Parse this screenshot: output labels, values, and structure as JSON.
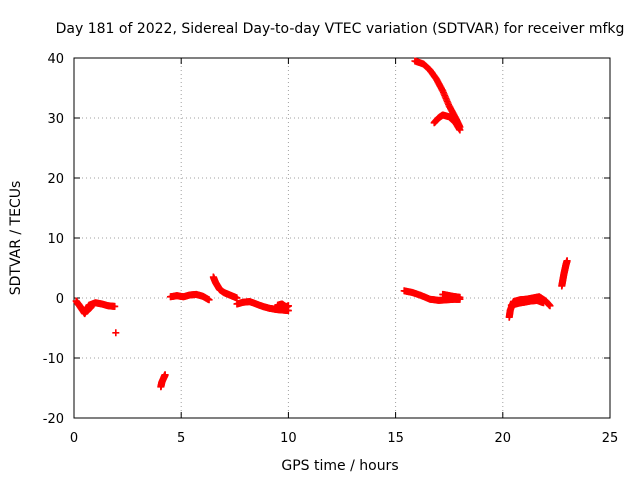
{
  "chart_data": {
    "type": "scatter",
    "title": "Day 181 of 2022, Sidereal Day-to-day VTEC variation (SDTVAR) for receiver mfkg",
    "xlabel": "GPS time / hours",
    "ylabel": "SDTVAR / TECUs",
    "xlim": [
      0,
      25
    ],
    "ylim": [
      -20,
      40
    ],
    "xticks": [
      0,
      5,
      10,
      15,
      20,
      25
    ],
    "yticks": [
      -20,
      -10,
      0,
      10,
      20,
      30,
      40
    ],
    "grid": true,
    "marker": "+",
    "color": "#ff0000",
    "segments": [
      {
        "name": "arc-0-2h",
        "x": [
          0.1,
          0.3,
          0.5,
          0.7,
          1.0,
          1.3,
          1.6,
          1.9
        ],
        "y": [
          -0.5,
          -1.5,
          -2.6,
          -1.2,
          -0.8,
          -1.0,
          -1.3,
          -1.4
        ]
      },
      {
        "name": "arc-0-1h-b",
        "x": [
          0.2,
          0.4,
          0.6,
          0.8
        ],
        "y": [
          -1.0,
          -2.0,
          -2.2,
          -1.5
        ]
      },
      {
        "name": "outlier-2h",
        "x": [
          1.95
        ],
        "y": [
          -5.8
        ]
      },
      {
        "name": "outlier-4h",
        "x": [
          4.05,
          4.1,
          4.2,
          4.25
        ],
        "y": [
          -14.8,
          -14.0,
          -13.2,
          -12.8
        ]
      },
      {
        "name": "arc-4-6h",
        "x": [
          4.5,
          4.8,
          5.1,
          5.4,
          5.7,
          6.0,
          6.3
        ],
        "y": [
          0.2,
          0.4,
          0.2,
          0.5,
          0.6,
          0.3,
          -0.3
        ]
      },
      {
        "name": "arc-6-7h",
        "x": [
          6.5,
          6.6,
          6.7,
          6.8,
          7.0,
          7.2,
          7.4,
          7.6
        ],
        "y": [
          3.5,
          2.6,
          2.0,
          1.4,
          0.9,
          0.6,
          0.3,
          0.0
        ]
      },
      {
        "name": "arc-7-10h",
        "x": [
          7.6,
          7.9,
          8.2,
          8.5,
          8.8,
          9.1,
          9.4,
          9.7,
          10.0
        ],
        "y": [
          -1.0,
          -0.7,
          -0.6,
          -1.0,
          -1.4,
          -1.7,
          -1.9,
          -2.0,
          -2.1
        ]
      },
      {
        "name": "arc-9-10h-b",
        "x": [
          9.5,
          9.7,
          9.9,
          10.0
        ],
        "y": [
          -1.2,
          -1.0,
          -1.5,
          -1.3
        ]
      },
      {
        "name": "arc-16-18h",
        "x": [
          15.9,
          16.3,
          16.6,
          16.9,
          17.2,
          17.5,
          17.8,
          18.0
        ],
        "y": [
          39.5,
          39.0,
          38.0,
          36.5,
          34.5,
          32.0,
          30.0,
          28.5
        ]
      },
      {
        "name": "arc-16-18h-b",
        "x": [
          16.8,
          17.0,
          17.2,
          17.5,
          17.8,
          18.0
        ],
        "y": [
          29.2,
          30.0,
          30.5,
          30.2,
          29.2,
          28.0
        ]
      },
      {
        "name": "arc-15-18h",
        "x": [
          15.4,
          15.8,
          16.2,
          16.6,
          17.0,
          17.4,
          17.8,
          18.0
        ],
        "y": [
          1.2,
          0.9,
          0.4,
          -0.2,
          -0.4,
          -0.3,
          -0.2,
          -0.2
        ]
      },
      {
        "name": "arc-17-18h-b",
        "x": [
          17.2,
          17.5,
          17.8,
          18.0
        ],
        "y": [
          0.6,
          0.4,
          0.2,
          0.1
        ]
      },
      {
        "name": "arc-20-22h",
        "x": [
          20.3,
          20.35,
          20.5,
          20.8,
          21.1,
          21.4,
          21.7,
          22.0,
          22.2
        ],
        "y": [
          -3.2,
          -2.0,
          -0.6,
          -0.3,
          -0.2,
          0.0,
          0.2,
          -0.5,
          -1.3
        ]
      },
      {
        "name": "arc-20-22h-b",
        "x": [
          20.4,
          20.7,
          21.0,
          21.3,
          21.6,
          21.9
        ],
        "y": [
          -1.2,
          -0.9,
          -0.7,
          -0.5,
          -0.4,
          -0.8
        ]
      },
      {
        "name": "arc-22-23h",
        "x": [
          22.75,
          22.8,
          22.85,
          22.9,
          22.95,
          23.0
        ],
        "y": [
          2.0,
          3.0,
          4.0,
          4.8,
          5.6,
          6.2
        ]
      }
    ]
  }
}
